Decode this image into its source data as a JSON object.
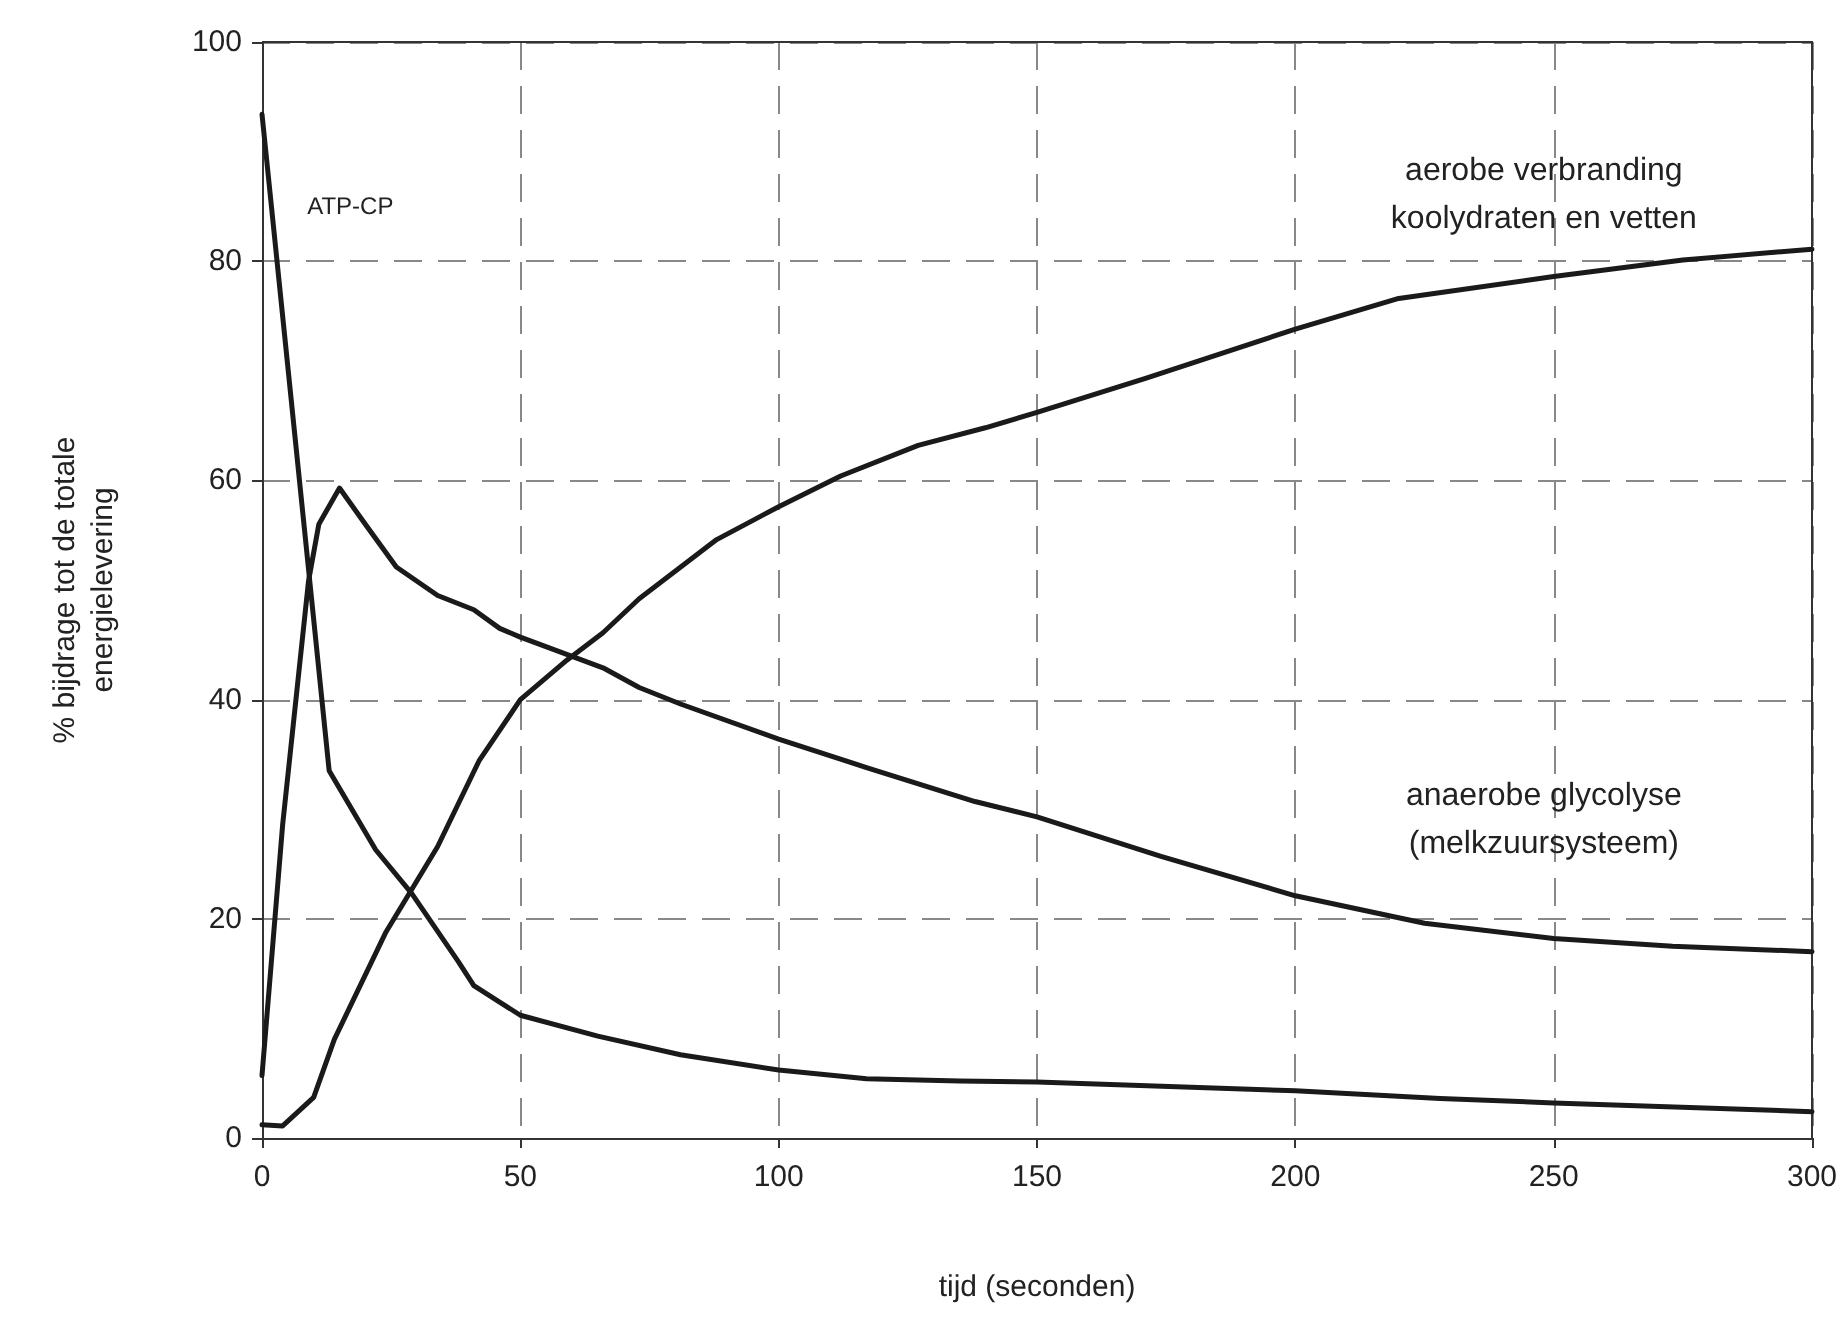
{
  "chart_data": {
    "type": "line",
    "xlabel": "tijd (seconden)",
    "ylabel": "% bijdrage tot de totale\nenergielevering",
    "xlim": [
      0,
      300
    ],
    "xticks": [
      0,
      50,
      100,
      150,
      200,
      250,
      300
    ],
    "ylim": [
      0,
      100
    ],
    "yticks": [
      0,
      20,
      40,
      60,
      80,
      100
    ],
    "grid": true,
    "legend": false,
    "marker": "none",
    "line_style": "solid",
    "series": [
      {
        "name": "ATP-CP",
        "color": "#1a1a1a",
        "x": [
          0,
          13,
          22,
          29,
          38,
          41,
          50,
          65,
          81,
          100,
          117,
          135,
          150,
          200,
          228,
          250,
          300
        ],
        "values": [
          93.4,
          33.5,
          26.3,
          22.3,
          16.1,
          13.9,
          11.2,
          9.3,
          7.6,
          6.2,
          5.4,
          5.2,
          5.1,
          4.3,
          3.6,
          3.2,
          2.4
        ]
      },
      {
        "name": "anaerobe glycolyse\n(melkzuursysteem)",
        "color": "#1a1a1a",
        "x": [
          0,
          4,
          9,
          11,
          15,
          20,
          26,
          34,
          41,
          46,
          50,
          66,
          73,
          81,
          100,
          117,
          138,
          150,
          174,
          200,
          225,
          250,
          273,
          300
        ],
        "values": [
          5.7,
          28.6,
          50.8,
          56,
          59.3,
          56,
          52.1,
          49.5,
          48.2,
          46.5,
          45.7,
          42.9,
          41.1,
          39.6,
          36.4,
          33.8,
          30.7,
          29.3,
          25.7,
          22.1,
          19.6,
          18.2,
          17.5,
          17
        ]
      },
      {
        "name": "aerobe verbranding\nkoolydraten en vetten",
        "color": "#1a1a1a",
        "x": [
          0,
          4,
          10,
          14,
          24,
          34,
          42,
          50,
          59,
          66,
          73,
          88,
          100,
          112,
          127,
          140,
          150,
          171,
          200,
          220,
          250,
          275,
          300
        ],
        "values": [
          1.2,
          1.1,
          3.7,
          9,
          18.8,
          26.6,
          34.4,
          40,
          43.6,
          46.1,
          49.2,
          54.6,
          57.6,
          60.4,
          63.2,
          64.8,
          66.2,
          69.3,
          73.8,
          76.6,
          78.6,
          80.1,
          81.1
        ]
      }
    ]
  }
}
